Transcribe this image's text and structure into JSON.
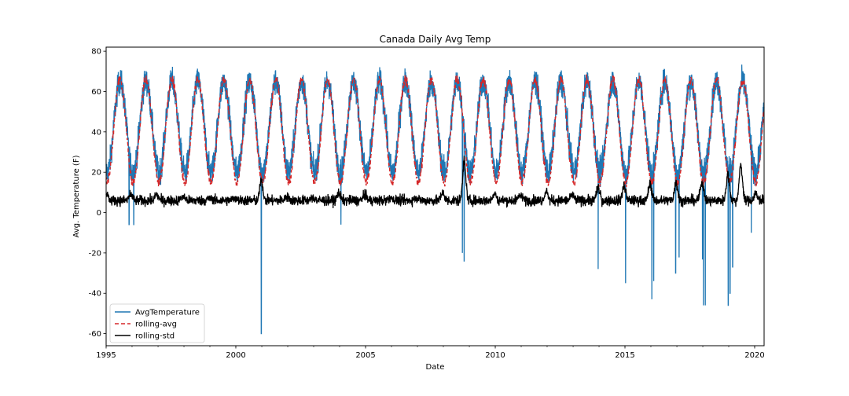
{
  "chart_data": {
    "type": "line",
    "title": "Canada Daily Avg Temp",
    "xlabel": "Date",
    "ylabel": "Avg. Temperature (F)",
    "xlim": [
      "1995-01-01",
      "2020-05-13"
    ],
    "ylim": [
      -66,
      82
    ],
    "x_ticks": [
      "1995",
      "2000",
      "2005",
      "2010",
      "2015",
      "2020"
    ],
    "y_ticks": [
      -60,
      -40,
      -20,
      0,
      20,
      40,
      60,
      80
    ],
    "grid": false,
    "legend_position": "lower-left",
    "series": [
      {
        "name": "AvgTemperature",
        "color": "#1f77b4",
        "style": "solid",
        "seasonal_min_f": 20,
        "seasonal_max_f": 65,
        "peak_month": "July",
        "daily_noise_f": 6,
        "outliers": [
          {
            "date": "1995-11-20",
            "value": -6
          },
          {
            "date": "1996-01-25",
            "value": -6
          },
          {
            "date": "2000-12-25",
            "value": -60
          },
          {
            "date": "2004-01-20",
            "value": -6
          },
          {
            "date": "2008-09-25",
            "value": -20
          },
          {
            "date": "2008-10-20",
            "value": -24
          },
          {
            "date": "2013-12-20",
            "value": -28
          },
          {
            "date": "2015-01-10",
            "value": -35
          },
          {
            "date": "2016-01-15",
            "value": -43
          },
          {
            "date": "2016-02-10",
            "value": -34
          },
          {
            "date": "2016-12-15",
            "value": -30
          },
          {
            "date": "2017-02-01",
            "value": -22
          },
          {
            "date": "2017-12-28",
            "value": -23
          },
          {
            "date": "2018-01-10",
            "value": -46
          },
          {
            "date": "2018-02-05",
            "value": -46
          },
          {
            "date": "2018-12-25",
            "value": -46
          },
          {
            "date": "2019-01-20",
            "value": -40
          },
          {
            "date": "2019-02-25",
            "value": -27
          },
          {
            "date": "2019-11-15",
            "value": -10
          }
        ]
      },
      {
        "name": "rolling-avg",
        "color": "#d62728",
        "style": "dashed",
        "seasonal_min_f": 15,
        "seasonal_max_f": 66,
        "peak_month": "July"
      },
      {
        "name": "rolling-std",
        "color": "#000000",
        "style": "solid",
        "baseline_f": 6,
        "points": [
          {
            "date": "1995-01-01",
            "value": 10
          },
          {
            "date": "1995-12-15",
            "value": 9
          },
          {
            "date": "1996-12-15",
            "value": 9
          },
          {
            "date": "1997-12-20",
            "value": 8
          },
          {
            "date": "1998-12-20",
            "value": 7
          },
          {
            "date": "1999-12-20",
            "value": 7
          },
          {
            "date": "2000-12-25",
            "value": 17
          },
          {
            "date": "2001-12-20",
            "value": 8
          },
          {
            "date": "2002-12-20",
            "value": 7
          },
          {
            "date": "2003-12-20",
            "value": 10
          },
          {
            "date": "2004-12-20",
            "value": 9
          },
          {
            "date": "2005-12-20",
            "value": 7
          },
          {
            "date": "2006-12-20",
            "value": 7
          },
          {
            "date": "2007-12-20",
            "value": 10
          },
          {
            "date": "2008-10-20",
            "value": 27
          },
          {
            "date": "2009-12-20",
            "value": 10
          },
          {
            "date": "2010-12-20",
            "value": 9
          },
          {
            "date": "2011-12-20",
            "value": 11
          },
          {
            "date": "2012-12-20",
            "value": 9
          },
          {
            "date": "2013-12-20",
            "value": 13
          },
          {
            "date": "2014-12-20",
            "value": 14
          },
          {
            "date": "2015-12-20",
            "value": 15
          },
          {
            "date": "2016-12-20",
            "value": 16
          },
          {
            "date": "2017-12-20",
            "value": 16
          },
          {
            "date": "2018-12-20",
            "value": 20
          },
          {
            "date": "2019-06-20",
            "value": 25
          },
          {
            "date": "2020-01-20",
            "value": 10
          }
        ]
      }
    ]
  }
}
